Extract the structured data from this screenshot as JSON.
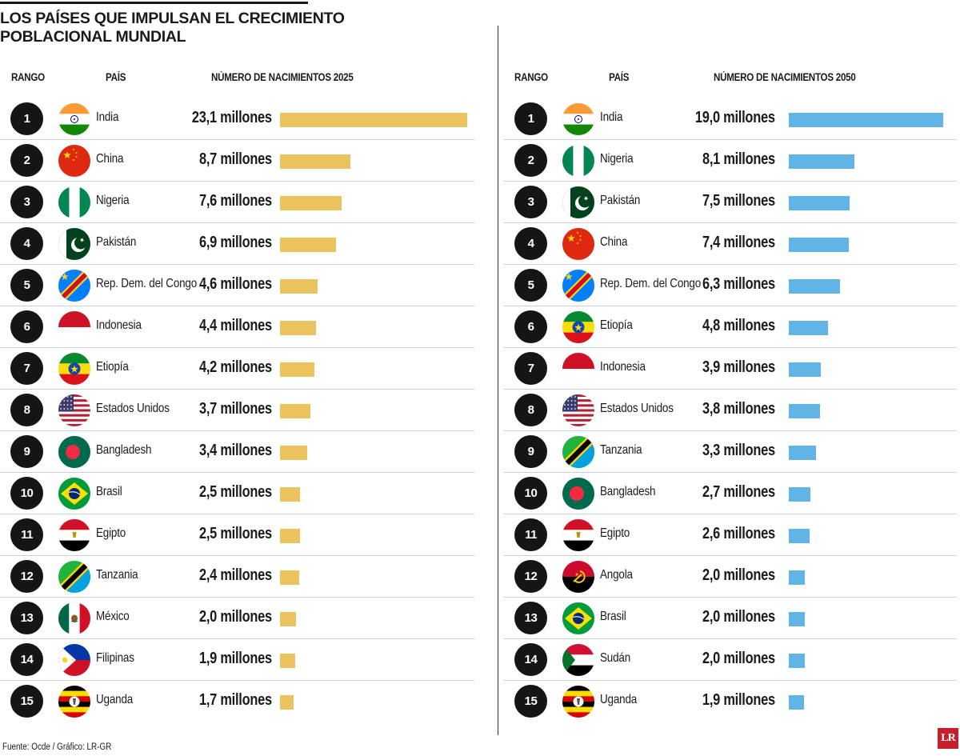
{
  "title_line1": "LOS PAÍSES QUE IMPULSAN EL CRECIMIENTO",
  "title_line2": "POBLACIONAL MUNDIAL",
  "footer": "Fuente: Ocde / Gráfico: LR-GR",
  "logo_text": "LR",
  "colors": {
    "bar_2025": "#ebc35e",
    "bar_2050": "#62b4e6",
    "rank_circle": "#151515",
    "logo": "#c8202a"
  },
  "chart_data": [
    {
      "type": "bar",
      "orientation": "horizontal",
      "headers": {
        "rank": "RANGO",
        "country": "PAÍS",
        "value": "NÚMERO DE NACIMIENTOS 2025"
      },
      "unit": "millones",
      "xlim": [
        0,
        23.1
      ],
      "bar_color": "#ebc35e",
      "rows": [
        {
          "rank": "1",
          "country": "India",
          "flag": "india-flag-icon",
          "value": 23.1,
          "label": "23,1 millones"
        },
        {
          "rank": "2",
          "country": "China",
          "flag": "china-flag-icon",
          "value": 8.7,
          "label": "8,7 millones"
        },
        {
          "rank": "3",
          "country": "Nigeria",
          "flag": "nigeria-flag-icon",
          "value": 7.6,
          "label": "7,6 millones"
        },
        {
          "rank": "4",
          "country": "Pakistán",
          "flag": "pakistan-flag-icon",
          "value": 6.9,
          "label": "6,9 millones"
        },
        {
          "rank": "5",
          "country": "Rep. Dem. del Congo",
          "flag": "drc-flag-icon",
          "value": 4.6,
          "label": "4,6 millones"
        },
        {
          "rank": "6",
          "country": "Indonesia",
          "flag": "indonesia-flag-icon",
          "value": 4.4,
          "label": "4,4 millones"
        },
        {
          "rank": "7",
          "country": "Etiopía",
          "flag": "ethiopia-flag-icon",
          "value": 4.2,
          "label": "4,2 millones"
        },
        {
          "rank": "8",
          "country": "Estados Unidos",
          "flag": "usa-flag-icon",
          "value": 3.7,
          "label": "3,7 millones"
        },
        {
          "rank": "9",
          "country": "Bangladesh",
          "flag": "bangladesh-flag-icon",
          "value": 3.4,
          "label": "3,4 millones"
        },
        {
          "rank": "10",
          "country": "Brasil",
          "flag": "brazil-flag-icon",
          "value": 2.5,
          "label": "2,5 millones"
        },
        {
          "rank": "11",
          "country": "Egipto",
          "flag": "egypt-flag-icon",
          "value": 2.5,
          "label": "2,5 millones"
        },
        {
          "rank": "12",
          "country": "Tanzania",
          "flag": "tanzania-flag-icon",
          "value": 2.4,
          "label": "2,4 millones"
        },
        {
          "rank": "13",
          "country": "México",
          "flag": "mexico-flag-icon",
          "value": 2.0,
          "label": "2,0 millones"
        },
        {
          "rank": "14",
          "country": "Filipinas",
          "flag": "philippines-flag-icon",
          "value": 1.9,
          "label": "1,9 millones"
        },
        {
          "rank": "15",
          "country": "Uganda",
          "flag": "uganda-flag-icon",
          "value": 1.7,
          "label": "1,7 millones"
        }
      ]
    },
    {
      "type": "bar",
      "orientation": "horizontal",
      "headers": {
        "rank": "RANGO",
        "country": "PAÍS",
        "value": "NÚMERO DE NACIMIENTOS 2050"
      },
      "unit": "millones",
      "xlim": [
        0,
        19.0
      ],
      "bar_color": "#62b4e6",
      "rows": [
        {
          "rank": "1",
          "country": "India",
          "flag": "india-flag-icon",
          "value": 19.0,
          "label": "19,0 millones"
        },
        {
          "rank": "2",
          "country": "Nigeria",
          "flag": "nigeria-flag-icon",
          "value": 8.1,
          "label": "8,1 millones"
        },
        {
          "rank": "3",
          "country": "Pakistán",
          "flag": "pakistan-flag-icon",
          "value": 7.5,
          "label": "7,5 millones"
        },
        {
          "rank": "4",
          "country": "China",
          "flag": "china-flag-icon",
          "value": 7.4,
          "label": "7,4 millones"
        },
        {
          "rank": "5",
          "country": "Rep. Dem. del Congo",
          "flag": "drc-flag-icon",
          "value": 6.3,
          "label": "6,3 millones"
        },
        {
          "rank": "6",
          "country": "Etiopía",
          "flag": "ethiopia-flag-icon",
          "value": 4.8,
          "label": "4,8 millones"
        },
        {
          "rank": "7",
          "country": "Indonesia",
          "flag": "indonesia-flag-icon",
          "value": 3.9,
          "label": "3,9 millones"
        },
        {
          "rank": "8",
          "country": "Estados Unidos",
          "flag": "usa-flag-icon",
          "value": 3.8,
          "label": "3,8 millones"
        },
        {
          "rank": "9",
          "country": "Tanzania",
          "flag": "tanzania-flag-icon",
          "value": 3.3,
          "label": "3,3 millones"
        },
        {
          "rank": "10",
          "country": "Bangladesh",
          "flag": "bangladesh-flag-icon",
          "value": 2.7,
          "label": "2,7 millones"
        },
        {
          "rank": "11",
          "country": "Egipto",
          "flag": "egypt-flag-icon",
          "value": 2.6,
          "label": "2,6 millones"
        },
        {
          "rank": "12",
          "country": "Angola",
          "flag": "angola-flag-icon",
          "value": 2.0,
          "label": "2,0 millones"
        },
        {
          "rank": "13",
          "country": "Brasil",
          "flag": "brazil-flag-icon",
          "value": 2.0,
          "label": "2,0 millones"
        },
        {
          "rank": "14",
          "country": "Sudán",
          "flag": "sudan-flag-icon",
          "value": 2.0,
          "label": "2,0 millones"
        },
        {
          "rank": "15",
          "country": "Uganda",
          "flag": "uganda-flag-icon",
          "value": 1.9,
          "label": "1,9 millones"
        }
      ]
    }
  ]
}
